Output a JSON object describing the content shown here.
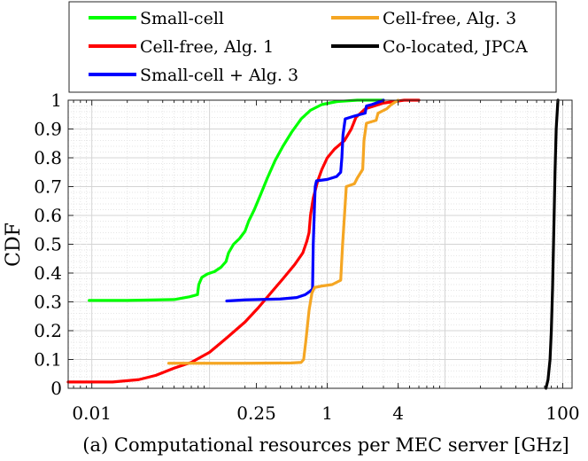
{
  "chart_data": {
    "type": "line",
    "title": "",
    "xlabel": "(a) Computational resources per MEC server [GHz]",
    "ylabel": "CDF",
    "xscale": "log",
    "xlim": [
      0.0063,
      120
    ],
    "ylim": [
      0,
      1
    ],
    "xticks": [
      {
        "value": 0.01,
        "label": "0.01"
      },
      {
        "value": 0.25,
        "label": "0.25"
      },
      {
        "value": 1,
        "label": "1"
      },
      {
        "value": 4,
        "label": "4"
      },
      {
        "value": 100,
        "label": "100"
      }
    ],
    "yticks": [
      {
        "value": 0,
        "label": "0"
      },
      {
        "value": 0.1,
        "label": "0.1"
      },
      {
        "value": 0.2,
        "label": "0.2"
      },
      {
        "value": 0.3,
        "label": "0.3"
      },
      {
        "value": 0.4,
        "label": "0.4"
      },
      {
        "value": 0.5,
        "label": "0.5"
      },
      {
        "value": 0.6,
        "label": "0.6"
      },
      {
        "value": 0.7,
        "label": "0.7"
      },
      {
        "value": 0.8,
        "label": "0.8"
      },
      {
        "value": 0.9,
        "label": "0.9"
      },
      {
        "value": 1,
        "label": "1"
      }
    ],
    "grid": true,
    "legend_position": "top, above plot, 2 columns",
    "series": [
      {
        "name": "Small-cell",
        "color": "#00ff00",
        "points": [
          [
            0.0095,
            0.305
          ],
          [
            0.02,
            0.305
          ],
          [
            0.05,
            0.308
          ],
          [
            0.068,
            0.318
          ],
          [
            0.079,
            0.325
          ],
          [
            0.081,
            0.36
          ],
          [
            0.086,
            0.385
          ],
          [
            0.096,
            0.397
          ],
          [
            0.11,
            0.405
          ],
          [
            0.125,
            0.42
          ],
          [
            0.138,
            0.44
          ],
          [
            0.145,
            0.47
          ],
          [
            0.16,
            0.5
          ],
          [
            0.18,
            0.52
          ],
          [
            0.2,
            0.545
          ],
          [
            0.215,
            0.58
          ],
          [
            0.24,
            0.62
          ],
          [
            0.27,
            0.67
          ],
          [
            0.31,
            0.73
          ],
          [
            0.36,
            0.79
          ],
          [
            0.42,
            0.84
          ],
          [
            0.5,
            0.89
          ],
          [
            0.6,
            0.935
          ],
          [
            0.72,
            0.965
          ],
          [
            0.9,
            0.985
          ],
          [
            1.2,
            0.995
          ],
          [
            1.8,
            1.0
          ],
          [
            3.0,
            1.0
          ]
        ]
      },
      {
        "name": "Cell-free, Alg. 1",
        "color": "#ff0000",
        "points": [
          [
            0.0063,
            0.022
          ],
          [
            0.015,
            0.022
          ],
          [
            0.025,
            0.03
          ],
          [
            0.035,
            0.045
          ],
          [
            0.05,
            0.07
          ],
          [
            0.07,
            0.09
          ],
          [
            0.1,
            0.125
          ],
          [
            0.14,
            0.175
          ],
          [
            0.2,
            0.23
          ],
          [
            0.26,
            0.28
          ],
          [
            0.33,
            0.33
          ],
          [
            0.42,
            0.38
          ],
          [
            0.53,
            0.43
          ],
          [
            0.62,
            0.47
          ],
          [
            0.67,
            0.51
          ],
          [
            0.7,
            0.54
          ],
          [
            0.72,
            0.6
          ],
          [
            0.76,
            0.66
          ],
          [
            0.83,
            0.72
          ],
          [
            0.9,
            0.76
          ],
          [
            1.0,
            0.8
          ],
          [
            1.15,
            0.83
          ],
          [
            1.4,
            0.86
          ],
          [
            1.6,
            0.9
          ],
          [
            1.75,
            0.94
          ],
          [
            2.1,
            0.97
          ],
          [
            3.0,
            0.99
          ],
          [
            4.5,
            1.0
          ],
          [
            6.0,
            1.0
          ]
        ]
      },
      {
        "name": "Small-cell + Alg. 3",
        "color": "#0000ff",
        "points": [
          [
            0.14,
            0.303
          ],
          [
            0.2,
            0.307
          ],
          [
            0.4,
            0.31
          ],
          [
            0.55,
            0.315
          ],
          [
            0.65,
            0.325
          ],
          [
            0.72,
            0.338
          ],
          [
            0.75,
            0.345
          ],
          [
            0.76,
            0.5
          ],
          [
            0.78,
            0.64
          ],
          [
            0.79,
            0.7
          ],
          [
            0.81,
            0.72
          ],
          [
            1.0,
            0.725
          ],
          [
            1.2,
            0.735
          ],
          [
            1.3,
            0.75
          ],
          [
            1.33,
            0.8
          ],
          [
            1.36,
            0.88
          ],
          [
            1.42,
            0.935
          ],
          [
            1.7,
            0.945
          ],
          [
            2.1,
            0.955
          ],
          [
            2.15,
            0.98
          ],
          [
            2.4,
            0.985
          ],
          [
            2.8,
            0.995
          ],
          [
            3.0,
            1.0
          ]
        ]
      },
      {
        "name": "Cell-free, Alg. 3",
        "color": "#f5a623",
        "points": [
          [
            0.045,
            0.087
          ],
          [
            0.2,
            0.087
          ],
          [
            0.5,
            0.088
          ],
          [
            0.6,
            0.09
          ],
          [
            0.63,
            0.1
          ],
          [
            0.66,
            0.17
          ],
          [
            0.7,
            0.27
          ],
          [
            0.74,
            0.33
          ],
          [
            0.78,
            0.35
          ],
          [
            0.9,
            0.355
          ],
          [
            1.1,
            0.36
          ],
          [
            1.3,
            0.375
          ],
          [
            1.35,
            0.5
          ],
          [
            1.4,
            0.6
          ],
          [
            1.45,
            0.7
          ],
          [
            1.7,
            0.71
          ],
          [
            1.8,
            0.73
          ],
          [
            2.0,
            0.76
          ],
          [
            2.05,
            0.86
          ],
          [
            2.15,
            0.92
          ],
          [
            2.6,
            0.93
          ],
          [
            2.7,
            0.955
          ],
          [
            3.2,
            0.97
          ],
          [
            3.5,
            0.985
          ],
          [
            4.0,
            1.0
          ]
        ]
      },
      {
        "name": "Co-located, JPCA",
        "color": "#000000",
        "points": [
          [
            72,
            0.0
          ],
          [
            75,
            0.03
          ],
          [
            78,
            0.1
          ],
          [
            80,
            0.2
          ],
          [
            82,
            0.35
          ],
          [
            84,
            0.55
          ],
          [
            86,
            0.75
          ],
          [
            88,
            0.9
          ],
          [
            91,
            1.0
          ]
        ]
      }
    ]
  }
}
